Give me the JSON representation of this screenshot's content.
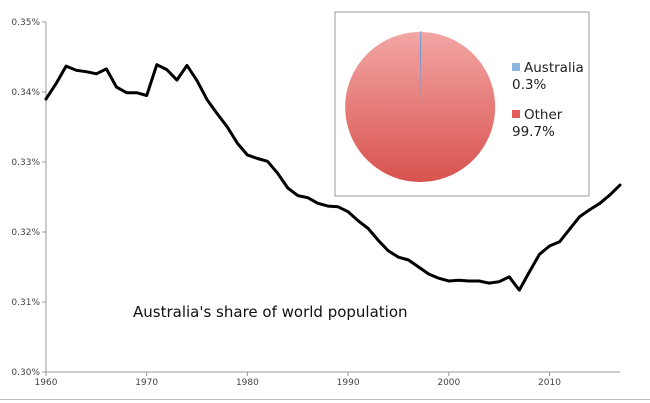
{
  "chart_data": [
    {
      "type": "line",
      "title": "",
      "xlabel": "",
      "ylabel": "",
      "xlim": [
        1960,
        2017
      ],
      "ylim": [
        0.3,
        0.35
      ],
      "grid": false,
      "x_ticks": [
        1960,
        1970,
        1980,
        1990,
        2000,
        2010
      ],
      "x_tick_labels": [
        "1960",
        "1970",
        "1980",
        "1990",
        "2000",
        "2010"
      ],
      "y_ticks": [
        0.3,
        0.31,
        0.32,
        0.33,
        0.34,
        0.35
      ],
      "y_tick_labels": [
        "0.30%",
        "0.31%",
        "0.32%",
        "0.33%",
        "0.34%",
        "0.35%"
      ],
      "annotation": "Australia's share of world population",
      "series": [
        {
          "color": "#000000",
          "x": [
            1960,
            1961,
            1962,
            1963,
            1964,
            1965,
            1966,
            1967,
            1968,
            1969,
            1970,
            1971,
            1972,
            1973,
            1974,
            1975,
            1976,
            1977,
            1978,
            1979,
            1980,
            1981,
            1982,
            1983,
            1984,
            1985,
            1986,
            1987,
            1988,
            1989,
            1990,
            1991,
            1992,
            1993,
            1994,
            1995,
            1996,
            1997,
            1998,
            1999,
            2000,
            2001,
            2002,
            2003,
            2004,
            2005,
            2006,
            2007,
            2008,
            2009,
            2010,
            2011,
            2012,
            2013,
            2014,
            2015,
            2016,
            2017
          ],
          "values": [
            0.339,
            0.3412,
            0.3437,
            0.3431,
            0.3429,
            0.3426,
            0.3433,
            0.3407,
            0.3399,
            0.3399,
            0.3395,
            0.3439,
            0.3432,
            0.3417,
            0.3438,
            0.3416,
            0.3389,
            0.3369,
            0.335,
            0.3327,
            0.331,
            0.3305,
            0.3301,
            0.3284,
            0.3263,
            0.3252,
            0.3249,
            0.3241,
            0.3237,
            0.3236,
            0.3229,
            0.3216,
            0.3205,
            0.3188,
            0.3173,
            0.3164,
            0.316,
            0.315,
            0.314,
            0.3134,
            0.313,
            0.3131,
            0.313,
            0.313,
            0.3127,
            0.3129,
            0.3136,
            0.3117,
            0.3143,
            0.3168,
            0.318,
            0.3186,
            0.3204,
            0.3222,
            0.3232,
            0.3241,
            0.3253,
            0.3267
          ]
        }
      ]
    },
    {
      "type": "pie",
      "labels": [
        "Australia",
        "Other"
      ],
      "values": [
        0.3,
        99.7
      ],
      "value_labels": [
        "0.3%",
        "99.7%"
      ],
      "colors": [
        "#8cb4e0",
        "#e25e5b"
      ],
      "legend_position": "right"
    }
  ]
}
